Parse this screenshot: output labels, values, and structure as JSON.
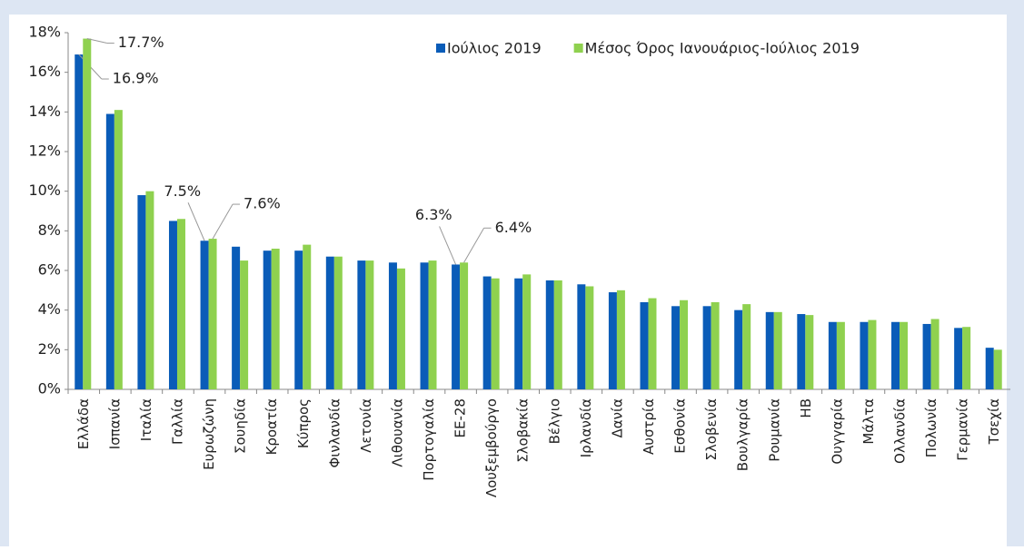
{
  "chart_data": {
    "type": "bar",
    "categories": [
      "Ελλάδα",
      "Ισπανία",
      "Ιταλία",
      "Γαλλία",
      "Ευρωζώνη",
      "Σουηδία",
      "Κροατία",
      "Κύπρος",
      "Φινλανδία",
      "Λετονία",
      "Λιθουανία",
      "Πορτογαλία",
      "ΕΕ-28",
      "Λουξεμβούργο",
      "Σλοβακία",
      "Βέλγιο",
      "Ιρλανδία",
      "Δανία",
      "Αυστρία",
      "Εσθονία",
      "Σλοβενία",
      "Βουλγαρία",
      "Ρουμανία",
      "ΗΒ",
      "Ουγγαρία",
      "Μάλτα",
      "Ολλανδία",
      "Πολωνία",
      "Γερμανία",
      "Τσεχία"
    ],
    "series": [
      {
        "name": "Ιούλιος 2019",
        "color": "#0a5cb8",
        "values": [
          16.9,
          13.9,
          9.8,
          8.5,
          7.5,
          7.2,
          7.0,
          7.0,
          6.7,
          6.5,
          6.4,
          6.4,
          6.3,
          5.7,
          5.6,
          5.5,
          5.3,
          4.9,
          4.4,
          4.2,
          4.2,
          4.0,
          3.9,
          3.8,
          3.4,
          3.4,
          3.4,
          3.3,
          3.1,
          2.1
        ],
        "value_labels": [
          "16.9%",
          null,
          null,
          null,
          "7.5%",
          null,
          null,
          null,
          null,
          null,
          null,
          null,
          "6.3%",
          null,
          null,
          null,
          null,
          null,
          null,
          null,
          null,
          null,
          null,
          null,
          null,
          null,
          null,
          null,
          null,
          null
        ]
      },
      {
        "name": "Μέσος Όρος Ιανουάριος-Ιούλιος 2019",
        "color": "#8fd14f",
        "values": [
          17.7,
          14.1,
          10.0,
          8.6,
          7.6,
          6.5,
          7.1,
          7.3,
          6.7,
          6.5,
          6.1,
          6.5,
          6.4,
          5.6,
          5.8,
          5.5,
          5.2,
          5.0,
          4.6,
          4.5,
          4.4,
          4.3,
          3.9,
          3.75,
          3.4,
          3.5,
          3.4,
          3.55,
          3.15,
          2.0
        ],
        "value_labels": [
          "17.7%",
          null,
          null,
          null,
          "7.6%",
          null,
          null,
          null,
          null,
          null,
          null,
          null,
          "6.4%",
          null,
          null,
          null,
          null,
          null,
          null,
          null,
          null,
          null,
          null,
          null,
          null,
          null,
          null,
          null,
          null,
          null
        ]
      }
    ],
    "ylim": [
      0,
      18
    ],
    "yticks": [
      {
        "value": 0,
        "label": "0%"
      },
      {
        "value": 2,
        "label": "2%"
      },
      {
        "value": 4,
        "label": "4%"
      },
      {
        "value": 6,
        "label": "6%"
      },
      {
        "value": 8,
        "label": "8%"
      },
      {
        "value": 10,
        "label": "10%"
      },
      {
        "value": 12,
        "label": "12%"
      },
      {
        "value": 14,
        "label": "14%"
      },
      {
        "value": 16,
        "label": "16%"
      },
      {
        "value": 18,
        "label": "18%"
      }
    ],
    "legend": "top-right"
  }
}
